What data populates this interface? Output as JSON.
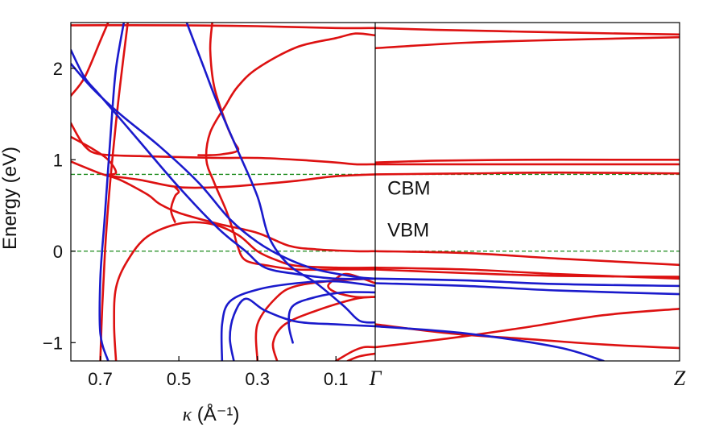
{
  "chart_data": {
    "type": "line",
    "title": "",
    "xlabel": "κ (Å⁻¹)",
    "ylabel": "Energy (eV)",
    "ylim": [
      -1.2,
      2.5
    ],
    "left_panel": {
      "xlim": [
        0.775,
        0.0
      ],
      "x_axis_reversed": true,
      "xticks": [
        {
          "value": 0.7,
          "label": "0.7"
        },
        {
          "value": 0.5,
          "label": "0.5"
        },
        {
          "value": 0.3,
          "label": "0.3"
        },
        {
          "value": 0.1,
          "label": "0.1"
        }
      ]
    },
    "right_panel": {
      "xlim": [
        0,
        1
      ],
      "xticks": [
        {
          "value": 0,
          "label": "Γ"
        },
        {
          "value": 1,
          "label": "Z"
        }
      ]
    },
    "yticks": [
      {
        "value": 2,
        "label": "2"
      },
      {
        "value": 1,
        "label": "1"
      },
      {
        "value": 0,
        "label": "0"
      },
      {
        "value": -1,
        "label": "−1"
      }
    ],
    "reference_lines": [
      {
        "name": "CBM",
        "y": 0.84,
        "color": "#1a8a1a",
        "style": "dashed"
      },
      {
        "name": "VBM",
        "y": 0.0,
        "color": "#1a8a1a",
        "style": "dashed"
      }
    ],
    "annotations": [
      {
        "text": "CBM",
        "x_panel": "right",
        "x": 0.04,
        "y": 0.62
      },
      {
        "text": "VBM",
        "x_panel": "right",
        "x": 0.04,
        "y": 0.16
      }
    ],
    "colors": {
      "red": "#dd1111",
      "blue": "#1a1acc",
      "axis": "#000000"
    },
    "series": [
      {
        "color": "red",
        "panel": "left",
        "points": [
          [
            0.775,
            1.7
          ],
          [
            0.74,
            1.9
          ],
          [
            0.7,
            2.3
          ],
          [
            0.68,
            2.5
          ]
        ]
      },
      {
        "color": "red",
        "panel": "left",
        "points": [
          [
            0.7,
            -1.2
          ],
          [
            0.695,
            -0.6
          ],
          [
            0.688,
            0.0
          ],
          [
            0.678,
            0.6
          ],
          [
            0.665,
            1.2
          ],
          [
            0.65,
            1.8
          ],
          [
            0.63,
            2.5
          ]
        ]
      },
      {
        "color": "red",
        "panel": "left",
        "points": [
          [
            0.775,
            1.4
          ],
          [
            0.74,
            1.15
          ],
          [
            0.7,
            1.06
          ],
          [
            0.6,
            1.04
          ],
          [
            0.5,
            1.03
          ],
          [
            0.4,
            1.02
          ],
          [
            0.3,
            1.02
          ],
          [
            0.2,
            1.0
          ],
          [
            0.1,
            0.97
          ],
          [
            0.05,
            0.95
          ],
          [
            0.0,
            0.95
          ]
        ]
      },
      {
        "color": "red",
        "panel": "left",
        "points": [
          [
            0.775,
            1.25
          ],
          [
            0.72,
            1.12
          ],
          [
            0.68,
            1.0
          ],
          [
            0.66,
            0.86
          ],
          [
            0.68,
            0.83
          ],
          [
            0.6,
            0.78
          ],
          [
            0.5,
            0.7
          ],
          [
            0.4,
            0.7
          ],
          [
            0.3,
            0.73
          ],
          [
            0.2,
            0.77
          ],
          [
            0.1,
            0.82
          ],
          [
            0.0,
            0.84
          ]
        ]
      },
      {
        "color": "red",
        "panel": "left",
        "points": [
          [
            0.775,
            2.47
          ],
          [
            0.5,
            2.47
          ],
          [
            0.3,
            2.46
          ],
          [
            0.1,
            2.44
          ],
          [
            0.0,
            2.44
          ]
        ]
      },
      {
        "color": "red",
        "panel": "left",
        "points": [
          [
            0.0,
            2.36
          ],
          [
            0.05,
            2.38
          ],
          [
            0.1,
            2.33
          ],
          [
            0.2,
            2.23
          ],
          [
            0.3,
            2.0
          ],
          [
            0.35,
            1.8
          ],
          [
            0.38,
            1.6
          ],
          [
            0.42,
            1.3
          ],
          [
            0.43,
            1.0
          ],
          [
            0.41,
            0.75
          ],
          [
            0.38,
            0.45
          ],
          [
            0.36,
            0.2
          ],
          [
            0.35,
            0.05
          ],
          [
            0.33,
            -0.1
          ],
          [
            0.27,
            -0.16
          ],
          [
            0.2,
            -0.2
          ],
          [
            0.1,
            -0.2
          ],
          [
            0.0,
            -0.2
          ]
        ]
      },
      {
        "color": "red",
        "panel": "left",
        "points": [
          [
            0.415,
            2.5
          ],
          [
            0.42,
            2.2
          ],
          [
            0.41,
            1.8
          ],
          [
            0.38,
            1.4
          ],
          [
            0.36,
            1.2
          ],
          [
            0.35,
            1.1
          ],
          [
            0.39,
            1.06
          ],
          [
            0.42,
            1.05
          ],
          [
            0.45,
            1.05
          ]
        ]
      },
      {
        "color": "red",
        "panel": "left",
        "points": [
          [
            0.775,
            0.98
          ],
          [
            0.7,
            0.85
          ],
          [
            0.65,
            0.78
          ],
          [
            0.58,
            0.62
          ],
          [
            0.55,
            0.52
          ],
          [
            0.5,
            0.42
          ],
          [
            0.4,
            0.3
          ],
          [
            0.3,
            0.2
          ],
          [
            0.22,
            0.06
          ],
          [
            0.15,
            0.02
          ],
          [
            0.05,
            0.0
          ],
          [
            0.0,
            0.0
          ]
        ]
      },
      {
        "color": "red",
        "panel": "left",
        "points": [
          [
            0.66,
            -1.2
          ],
          [
            0.665,
            -0.8
          ],
          [
            0.66,
            -0.4
          ],
          [
            0.63,
            -0.1
          ],
          [
            0.58,
            0.16
          ],
          [
            0.5,
            0.3
          ],
          [
            0.42,
            0.3
          ],
          [
            0.35,
            0.18
          ],
          [
            0.3,
            0.0
          ],
          [
            0.25,
            -0.1
          ],
          [
            0.2,
            -0.16
          ],
          [
            0.1,
            -0.18
          ],
          [
            0.0,
            -0.18
          ]
        ]
      },
      {
        "color": "red",
        "panel": "left",
        "points": [
          [
            0.51,
            0.32
          ],
          [
            0.52,
            0.45
          ],
          [
            0.51,
            0.6
          ],
          [
            0.5,
            0.65
          ],
          [
            0.51,
            0.7
          ]
        ]
      },
      {
        "color": "red",
        "panel": "left",
        "points": [
          [
            0.3,
            -1.2
          ],
          [
            0.3,
            -0.8
          ],
          [
            0.25,
            -0.5
          ],
          [
            0.2,
            -0.38
          ],
          [
            0.1,
            -0.32
          ],
          [
            0.0,
            -0.3
          ]
        ]
      },
      {
        "color": "red",
        "panel": "left",
        "points": [
          [
            0.25,
            -1.2
          ],
          [
            0.26,
            -1.0
          ],
          [
            0.23,
            -0.8
          ],
          [
            0.15,
            -0.65
          ],
          [
            0.05,
            -0.52
          ],
          [
            0.0,
            -0.5
          ]
        ]
      },
      {
        "color": "red",
        "panel": "left",
        "points": [
          [
            0.0,
            -0.35
          ],
          [
            0.07,
            -0.25
          ],
          [
            0.1,
            -0.3
          ],
          [
            0.12,
            -0.38
          ],
          [
            0.1,
            -0.45
          ],
          [
            0.05,
            -0.5
          ],
          [
            0.0,
            -0.5
          ]
        ]
      },
      {
        "color": "red",
        "panel": "left",
        "points": [
          [
            0.1,
            -1.2
          ],
          [
            0.06,
            -1.1
          ],
          [
            0.03,
            -1.05
          ],
          [
            0.0,
            -1.05
          ]
        ]
      },
      {
        "color": "red",
        "panel": "left",
        "points": [
          [
            0.07,
            -1.2
          ],
          [
            0.04,
            -1.15
          ],
          [
            0.0,
            -1.12
          ]
        ]
      },
      {
        "color": "blue",
        "panel": "left",
        "points": [
          [
            0.775,
            2.2
          ],
          [
            0.74,
            1.9
          ],
          [
            0.7,
            1.7
          ],
          [
            0.6,
            1.2
          ],
          [
            0.5,
            0.7
          ],
          [
            0.4,
            0.25
          ],
          [
            0.33,
            0.0
          ],
          [
            0.28,
            -0.18
          ],
          [
            0.2,
            -0.25
          ],
          [
            0.1,
            -0.3
          ],
          [
            0.0,
            -0.3
          ]
        ]
      },
      {
        "color": "blue",
        "panel": "left",
        "points": [
          [
            0.68,
            -1.2
          ],
          [
            0.7,
            -0.9
          ],
          [
            0.7,
            -0.3
          ],
          [
            0.69,
            0.3
          ],
          [
            0.68,
            0.9
          ],
          [
            0.67,
            1.5
          ],
          [
            0.66,
            2.0
          ],
          [
            0.64,
            2.5
          ]
        ]
      },
      {
        "color": "blue",
        "panel": "left",
        "points": [
          [
            0.775,
            2.05
          ],
          [
            0.72,
            1.78
          ],
          [
            0.65,
            1.5
          ],
          [
            0.55,
            1.15
          ],
          [
            0.45,
            0.75
          ],
          [
            0.37,
            0.35
          ],
          [
            0.3,
            0.1
          ],
          [
            0.23,
            -0.07
          ],
          [
            0.15,
            -0.2
          ],
          [
            0.05,
            -0.28
          ],
          [
            0.0,
            -0.3
          ]
        ]
      },
      {
        "color": "blue",
        "panel": "left",
        "points": [
          [
            0.48,
            2.5
          ],
          [
            0.44,
            2.05
          ],
          [
            0.4,
            1.6
          ],
          [
            0.35,
            1.1
          ],
          [
            0.3,
            0.6
          ],
          [
            0.27,
            0.15
          ],
          [
            0.22,
            -0.15
          ],
          [
            0.15,
            -0.35
          ],
          [
            0.08,
            -0.6
          ],
          [
            0.04,
            -0.76
          ],
          [
            0.0,
            -0.78
          ]
        ]
      },
      {
        "color": "blue",
        "panel": "left",
        "points": [
          [
            0.0,
            -0.82
          ],
          [
            0.1,
            -0.8
          ],
          [
            0.2,
            -0.77
          ],
          [
            0.28,
            -0.65
          ],
          [
            0.33,
            -0.52
          ],
          [
            0.36,
            -0.7
          ],
          [
            0.37,
            -0.95
          ],
          [
            0.36,
            -1.2
          ]
        ]
      },
      {
        "color": "blue",
        "panel": "left",
        "points": [
          [
            0.0,
            -0.38
          ],
          [
            0.1,
            -0.33
          ],
          [
            0.2,
            -0.35
          ],
          [
            0.3,
            -0.42
          ],
          [
            0.37,
            -0.55
          ],
          [
            0.39,
            -0.8
          ],
          [
            0.39,
            -1.2
          ]
        ]
      },
      {
        "color": "blue",
        "panel": "left",
        "points": [
          [
            0.0,
            -0.45
          ],
          [
            0.08,
            -0.45
          ],
          [
            0.15,
            -0.5
          ],
          [
            0.21,
            -0.6
          ],
          [
            0.22,
            -0.8
          ],
          [
            0.21,
            -1.0
          ]
        ]
      },
      {
        "color": "red",
        "panel": "right",
        "points": [
          [
            0,
            2.44
          ],
          [
            0.2,
            2.42
          ],
          [
            0.5,
            2.4
          ],
          [
            0.8,
            2.38
          ],
          [
            1,
            2.37
          ]
        ]
      },
      {
        "color": "red",
        "panel": "right",
        "points": [
          [
            0,
            2.22
          ],
          [
            0.3,
            2.28
          ],
          [
            0.6,
            2.31
          ],
          [
            1,
            2.34
          ]
        ]
      },
      {
        "color": "red",
        "panel": "right",
        "points": [
          [
            0,
            0.97
          ],
          [
            0.2,
            0.99
          ],
          [
            0.5,
            1.0
          ],
          [
            0.8,
            1.0
          ],
          [
            1,
            1.0
          ]
        ]
      },
      {
        "color": "red",
        "panel": "right",
        "points": [
          [
            0,
            0.95
          ],
          [
            0.2,
            0.95
          ],
          [
            0.5,
            0.95
          ],
          [
            1,
            0.95
          ]
        ]
      },
      {
        "color": "red",
        "panel": "right",
        "points": [
          [
            0,
            0.84
          ],
          [
            0.3,
            0.85
          ],
          [
            0.6,
            0.86
          ],
          [
            1,
            0.85
          ]
        ]
      },
      {
        "color": "red",
        "panel": "right",
        "points": [
          [
            0,
            0.0
          ],
          [
            0.3,
            -0.02
          ],
          [
            0.6,
            -0.08
          ],
          [
            1,
            -0.15
          ]
        ]
      },
      {
        "color": "red",
        "panel": "right",
        "points": [
          [
            0,
            -0.18
          ],
          [
            0.3,
            -0.2
          ],
          [
            0.6,
            -0.25
          ],
          [
            1,
            -0.3
          ]
        ]
      },
      {
        "color": "red",
        "panel": "right",
        "points": [
          [
            0,
            -0.2
          ],
          [
            0.3,
            -0.24
          ],
          [
            0.6,
            -0.27
          ],
          [
            1,
            -0.28
          ]
        ]
      },
      {
        "color": "blue",
        "panel": "right",
        "points": [
          [
            0,
            -0.3
          ],
          [
            0.3,
            -0.32
          ],
          [
            0.6,
            -0.36
          ],
          [
            1,
            -0.38
          ]
        ]
      },
      {
        "color": "blue",
        "panel": "right",
        "points": [
          [
            0,
            -0.35
          ],
          [
            0.3,
            -0.38
          ],
          [
            0.6,
            -0.43
          ],
          [
            1,
            -0.47
          ]
        ]
      },
      {
        "color": "red",
        "panel": "right",
        "points": [
          [
            0,
            -0.8
          ],
          [
            0.25,
            -0.9
          ],
          [
            0.5,
            -0.96
          ],
          [
            0.75,
            -1.02
          ],
          [
            1,
            -1.06
          ]
        ]
      },
      {
        "color": "red",
        "panel": "right",
        "points": [
          [
            0,
            -1.05
          ],
          [
            0.25,
            -0.95
          ],
          [
            0.5,
            -0.83
          ],
          [
            0.75,
            -0.7
          ],
          [
            1,
            -0.63
          ]
        ]
      },
      {
        "color": "blue",
        "panel": "right",
        "points": [
          [
            0,
            -0.82
          ],
          [
            0.3,
            -0.9
          ],
          [
            0.6,
            -1.05
          ],
          [
            0.75,
            -1.2
          ]
        ]
      }
    ]
  }
}
